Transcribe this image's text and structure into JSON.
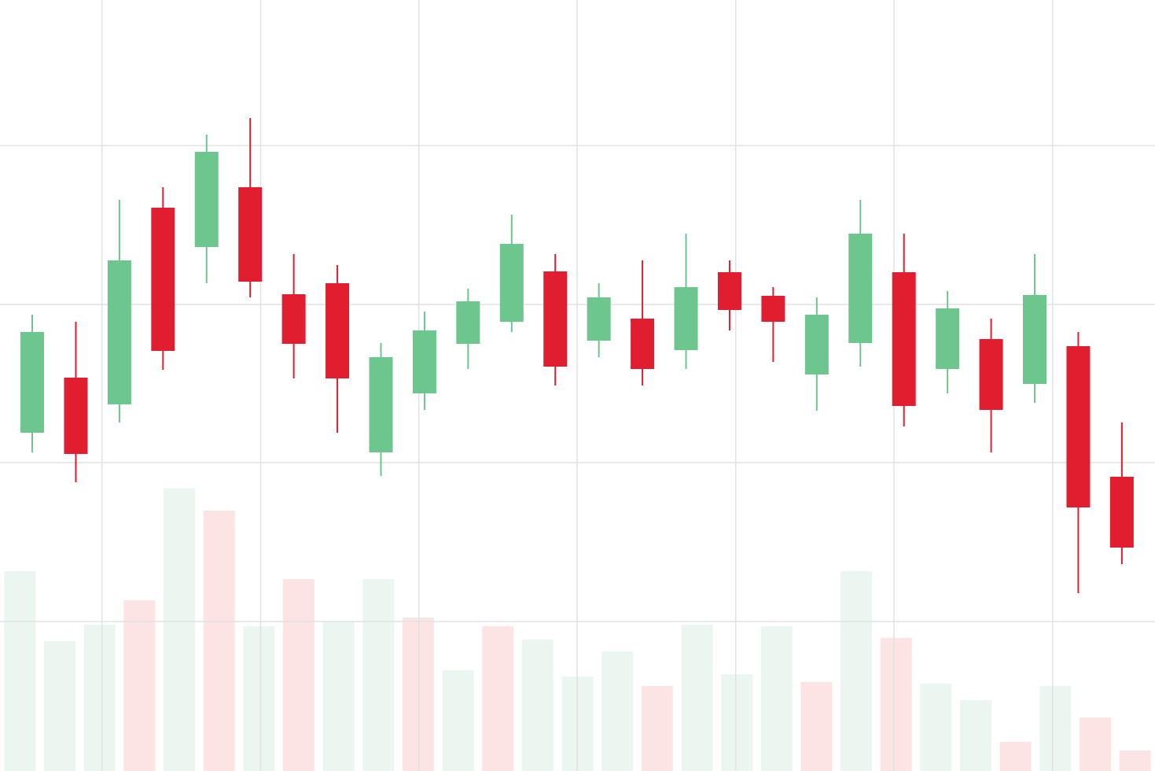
{
  "chart_data": [
    {
      "type": "candlestick",
      "categories": [
        null,
        null,
        null,
        null,
        null,
        null,
        null,
        null,
        null,
        null,
        null,
        null,
        null,
        null,
        null,
        null,
        null,
        null,
        null,
        null,
        null,
        null,
        null,
        null,
        null,
        null
      ],
      "open": [
        430,
        500,
        466,
        716,
        666,
        742,
        606,
        620,
        405,
        480,
        543,
        571,
        635,
        547,
        575,
        535,
        634,
        604,
        504,
        544,
        634,
        511,
        549,
        492,
        540,
        374
      ],
      "high": [
        580,
        571,
        726,
        742,
        809,
        830,
        657,
        643,
        544,
        584,
        613,
        707,
        657,
        620,
        649,
        683,
        649,
        615,
        602,
        726,
        683,
        610,
        575,
        657,
        558,
        443
      ],
      "low": [
        405,
        367,
        443,
        510,
        620,
        602,
        499,
        430,
        375,
        459,
        511,
        558,
        490,
        526,
        490,
        511,
        560,
        520,
        458,
        514,
        438,
        480,
        405,
        468,
        226,
        263
      ],
      "close": [
        558,
        403,
        649,
        534,
        787,
        622,
        543,
        499,
        526,
        560,
        597,
        670,
        514,
        602,
        511,
        615,
        586,
        571,
        580,
        683,
        464,
        588,
        459,
        605,
        335,
        284
      ],
      "up_color": "#6cc68e",
      "down_color": "#e01e2f",
      "xlim": [
        -0.74,
        25.76
      ],
      "xticks": [
        1.6,
        5.24,
        8.87,
        12.5,
        16.14,
        19.77,
        23.41
      ],
      "ylim": [
        0,
        980
      ],
      "yticks": [
        190,
        392,
        593,
        795
      ],
      "grid": true
    },
    {
      "type": "bar",
      "categories": [
        null,
        null,
        null,
        null,
        null,
        null,
        null,
        null,
        null,
        null,
        null,
        null,
        null,
        null,
        null,
        null,
        null,
        null,
        null,
        null,
        null,
        null,
        null,
        null,
        null,
        null,
        null,
        null,
        null
      ],
      "values": [
        254,
        165,
        186,
        217,
        359,
        331,
        184,
        244,
        190,
        244,
        195,
        128,
        184,
        167,
        120,
        152,
        108,
        186,
        123,
        184,
        113,
        254,
        169,
        111,
        90,
        37,
        108,
        68,
        26
      ],
      "colors": [
        "#ebf6f1",
        "#ebf6f1",
        "#ebf6f1",
        "#fce4e4",
        "#ebf6f1",
        "#fce4e4",
        "#ebf6f1",
        "#fce4e4",
        "#ebf6f1",
        "#ebf6f1",
        "#fce4e4",
        "#ebf6f1",
        "#fce4e4",
        "#ebf6f1",
        "#ebf6f1",
        "#ebf6f1",
        "#fce4e4",
        "#ebf6f1",
        "#ebf6f1",
        "#ebf6f1",
        "#fce4e4",
        "#ebf6f1",
        "#fce4e4",
        "#ebf6f1",
        "#ebf6f1",
        "#fce4e4",
        "#ebf6f1",
        "#fce4e4",
        "#fce4e4"
      ],
      "ylim": [
        0,
        980
      ]
    }
  ]
}
